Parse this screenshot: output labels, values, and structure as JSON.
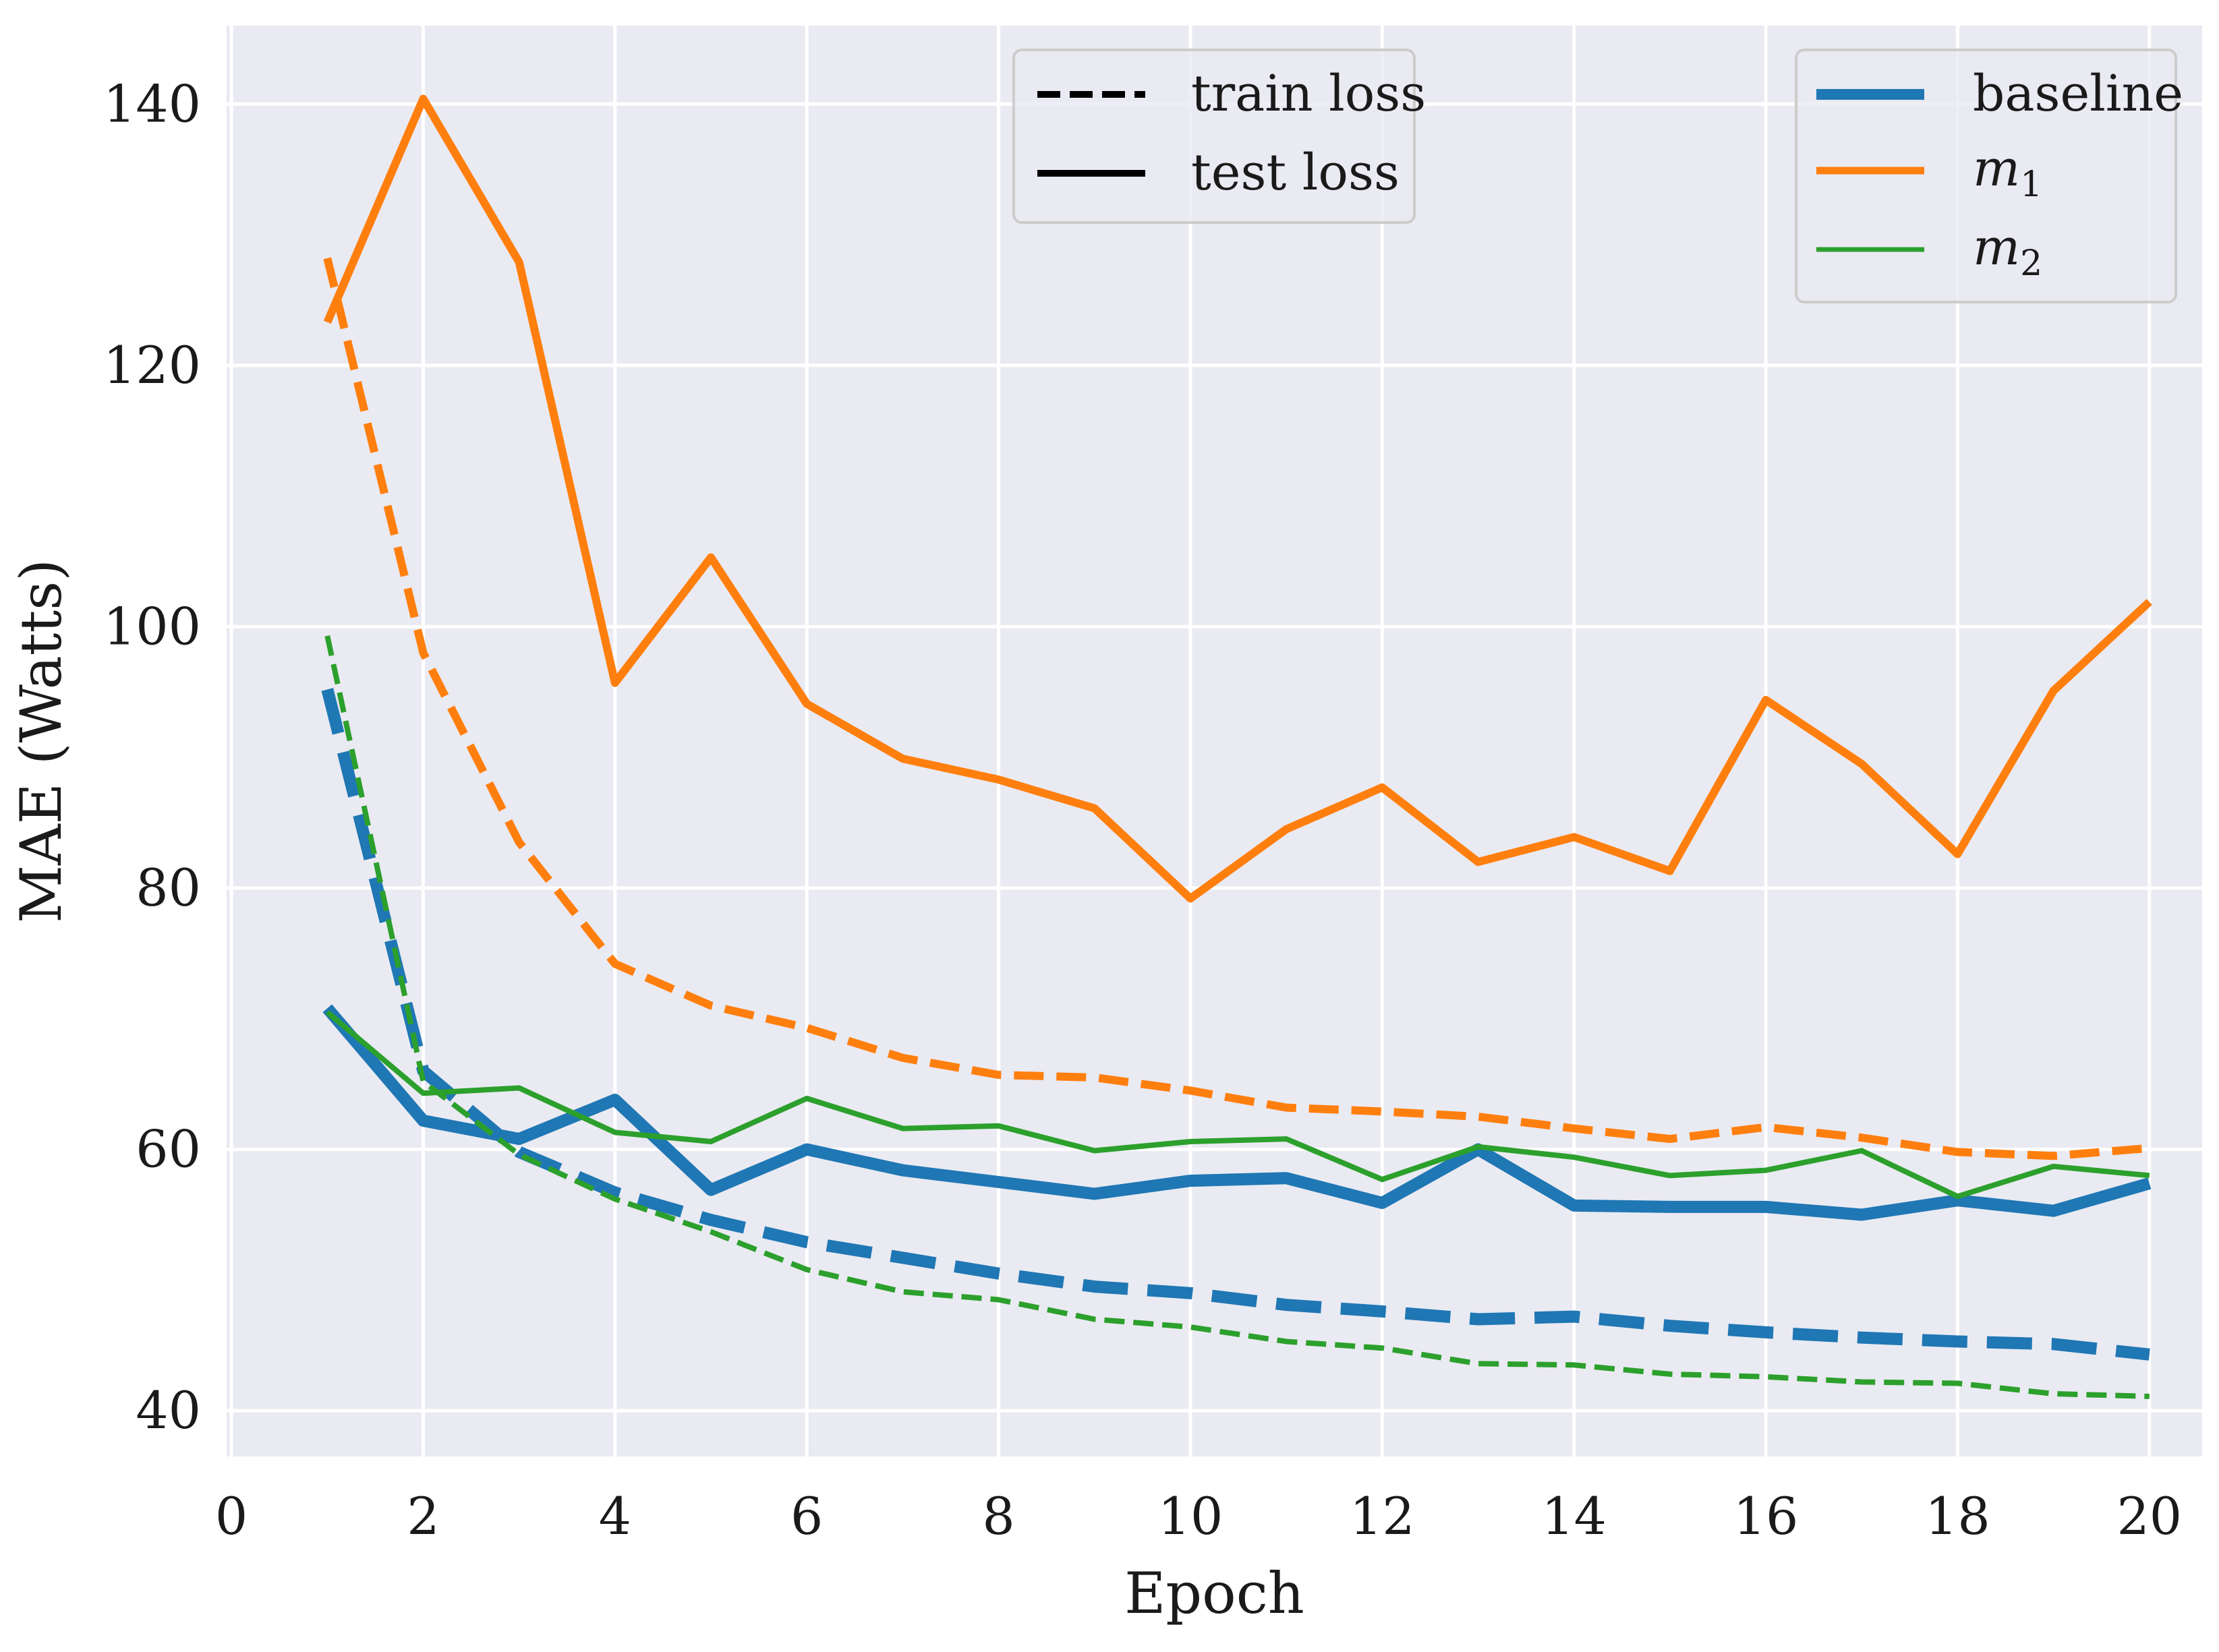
{
  "chart_data": {
    "type": "line",
    "title": "",
    "xlabel": "Epoch",
    "ylabel": "MAE (Watts)",
    "xlim": [
      -0.05,
      20.55
    ],
    "ylim": [
      36.5,
      146
    ],
    "xticks": [
      0,
      2,
      4,
      6,
      8,
      10,
      12,
      14,
      16,
      18,
      20
    ],
    "yticks": [
      40,
      60,
      80,
      100,
      120,
      140
    ],
    "grid": true,
    "x": [
      1,
      2,
      3,
      4,
      5,
      6,
      7,
      8,
      9,
      10,
      11,
      12,
      13,
      14,
      15,
      16,
      17,
      18,
      19,
      20
    ],
    "series": [
      {
        "name": "baseline",
        "kind": "test loss",
        "color": "#1f77b4",
        "values": [
          70.8,
          62.2,
          60.8,
          63.8,
          56.9,
          60.0,
          58.4,
          57.5,
          56.6,
          57.6,
          57.8,
          55.9,
          60.0,
          55.7,
          55.6,
          55.6,
          55.0,
          56.1,
          55.3,
          57.4
        ]
      },
      {
        "name": "baseline",
        "kind": "train loss",
        "color": "#1f77b4",
        "values": [
          95.2,
          66.0,
          59.8,
          56.7,
          54.6,
          52.9,
          51.7,
          50.5,
          49.5,
          49.0,
          48.1,
          47.6,
          47.0,
          47.2,
          46.5,
          46.0,
          45.6,
          45.3,
          45.1,
          44.3
        ]
      },
      {
        "name": "m1",
        "kind": "test loss",
        "color": "#ff7f0e",
        "values": [
          123.3,
          140.4,
          127.9,
          95.7,
          105.3,
          94.1,
          89.9,
          88.3,
          86.1,
          79.2,
          84.5,
          87.7,
          82.0,
          83.9,
          81.3,
          94.4,
          89.5,
          82.6,
          95.1,
          101.9
        ]
      },
      {
        "name": "m1",
        "kind": "train loss",
        "color": "#ff7f0e",
        "values": [
          128.2,
          98.0,
          83.5,
          74.2,
          71.0,
          69.3,
          67.0,
          65.7,
          65.5,
          64.5,
          63.2,
          62.9,
          62.5,
          61.6,
          60.8,
          61.7,
          60.9,
          59.8,
          59.5,
          60.1
        ]
      },
      {
        "name": "m2",
        "kind": "test loss",
        "color": "#2ca02c",
        "values": [
          70.5,
          64.3,
          64.7,
          61.3,
          60.6,
          63.9,
          61.6,
          61.8,
          59.9,
          60.6,
          60.8,
          57.7,
          60.2,
          59.4,
          58.0,
          58.4,
          59.9,
          56.4,
          58.7,
          58.0
        ]
      },
      {
        "name": "m2",
        "kind": "train loss",
        "color": "#2ca02c",
        "values": [
          99.3,
          65.2,
          59.6,
          56.2,
          53.7,
          50.8,
          49.1,
          48.5,
          47.0,
          46.4,
          45.3,
          44.8,
          43.6,
          43.5,
          42.8,
          42.6,
          42.2,
          42.1,
          41.3,
          41.1
        ]
      }
    ],
    "legend_style": {
      "location": "top-center",
      "entries": [
        {
          "label": "train loss",
          "style": "dashed",
          "color": "#000000"
        },
        {
          "label": "test loss",
          "style": "solid",
          "color": "#000000"
        }
      ]
    },
    "legend_models": {
      "location": "top-right",
      "entries": [
        {
          "label": "baseline",
          "base": "baseline",
          "sub": "",
          "color": "#1f77b4",
          "weight": "thick"
        },
        {
          "label": "m1",
          "base": "m",
          "sub": "1",
          "color": "#ff7f0e",
          "weight": "medium"
        },
        {
          "label": "m2",
          "base": "m",
          "sub": "2",
          "color": "#2ca02c",
          "weight": "thin"
        }
      ]
    }
  }
}
